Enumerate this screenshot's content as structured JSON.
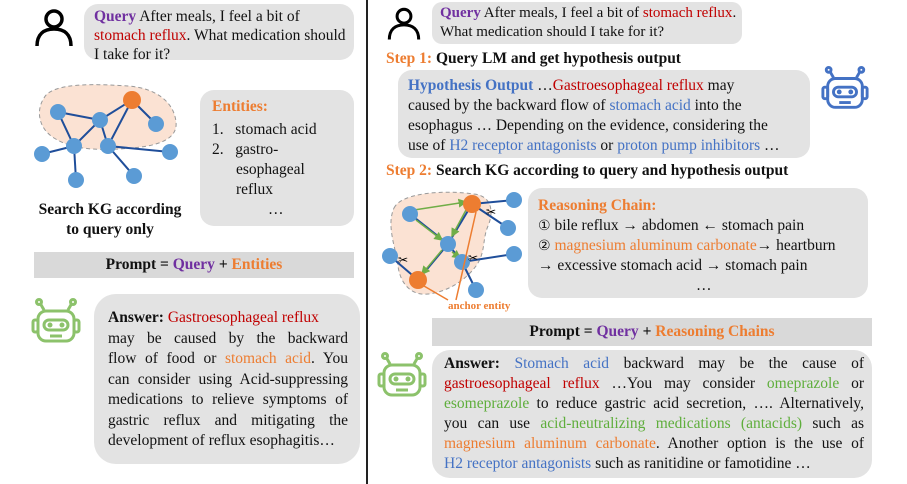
{
  "left": {
    "query_label": "Query",
    "query_text_1": "After meals, I feel a bit of",
    "query_term": "stomach reflux",
    "query_text_2": ". What medication should I take for it?",
    "entities_title": "Entities:",
    "entities": [
      "stomach acid",
      "gastro-esophageal reflux"
    ],
    "entities_line2a": "gastro-",
    "entities_line2b": "esophageal",
    "entities_line2c": "reflux",
    "entities_more": "…",
    "kg_caption_1": "Search KG according",
    "kg_caption_2": "to query only",
    "prompt_prefix": "Prompt = ",
    "prompt_query": "Query",
    "prompt_plus": " + ",
    "prompt_entities": "Entities",
    "answer_label": "Answer:",
    "answer_term1": "Gastroesophageal reflux",
    "answer_l2": "may be caused by the backward",
    "answer_l3a": "flow of food or",
    "answer_term2": "stomach acid",
    "answer_l3b": ". You",
    "answer_l4": "can consider using Acid-suppressing",
    "answer_l5": "medications to relieve symptoms of",
    "answer_l6": "gastric reflux and mitigating the",
    "answer_l7": "development of reflux esophagitis…"
  },
  "right": {
    "query_label": "Query",
    "query_text_1": "After meals, I feel a bit of",
    "query_term": "stomach reflux",
    "query_text_2": ". What medication should I take for it?",
    "step1_label": "Step 1:",
    "step1_text": "Query LM and get hypothesis output",
    "hyp_label": "Hypothesis Output",
    "hyp_l1a": "…",
    "hyp_term1": "Gastroesophageal reflux",
    "hyp_l1b": " may",
    "hyp_l2a": "caused by the backward flow of ",
    "hyp_term2": "stomach acid",
    "hyp_l2b": " into the",
    "hyp_l3": "esophagus … Depending on the evidence, considering the",
    "hyp_l4a": "use of ",
    "hyp_term3": "H2 receptor antagonists",
    "hyp_l4b": " or ",
    "hyp_term4": "proton pump inhibitors",
    "hyp_l4c": " …",
    "step2_label": "Step 2:",
    "step2_text": "Search KG according to query and hypothesis output",
    "chain_title": "Reasoning Chain:",
    "chain_1_num": "①",
    "chain_1": "bile reflux → abdomen ← stomach pain",
    "chain_2_num": "②",
    "chain_2_term": "magnesium aluminum carbonate",
    "chain_2_rest": "→ heartburn",
    "chain_3": "→ excessive stomach acid → stomach pain",
    "chain_more": "…",
    "anchor_label": "anchor entity",
    "prompt_prefix": "Prompt = ",
    "prompt_query": "Query",
    "prompt_plus": " + ",
    "prompt_chains": "Reasoning Chains",
    "answer_label": "Answer:",
    "ans_t1": "Stomach acid",
    "ans_l1": " backward may be the cause of",
    "ans_t2": "gastroesophageal reflux",
    "ans_l2a": " …You may consider ",
    "ans_t3": "omeprazole",
    "ans_l2b": " or",
    "ans_t4": "esomeprazole",
    "ans_l3": " to reduce gastric acid secretion, …. Alternatively,",
    "ans_l4a": "you can use ",
    "ans_t5": "acid-neutralizing medications (antacids)",
    "ans_l4b": " such as",
    "ans_t6": "magnesium aluminum carbonate",
    "ans_l5": ". Another option is the use of",
    "ans_t7": "H2 receptor antagonists",
    "ans_l6": " such as ranitidine or famotidine …"
  },
  "colors": {
    "purple": "#7030a0",
    "red": "#c00000",
    "orange": "#ed7d31",
    "blue": "#4472c4",
    "green": "#5fae3c",
    "bubble": "#e3e3e3"
  }
}
